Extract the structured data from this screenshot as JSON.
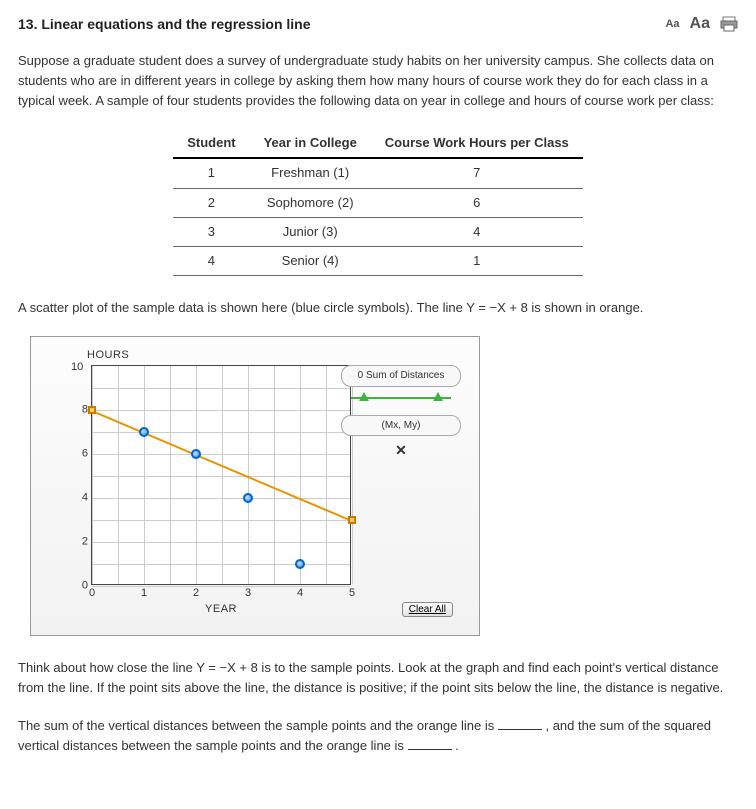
{
  "header": {
    "title": "13. Linear equations and the regression line",
    "font_small": "Aa",
    "font_large": "Aa"
  },
  "intro": "Suppose a graduate student does a survey of undergraduate study habits on her university campus. She collects data on students who are in different years in college by asking them how many hours of course work they do for each class in a typical week. A sample of four students provides the following data on year in college and hours of course work per class:",
  "table": {
    "columns": [
      "Student",
      "Year in College",
      "Course Work Hours per Class"
    ],
    "rows": [
      [
        "1",
        "Freshman (1)",
        "7"
      ],
      [
        "2",
        "Sophomore (2)",
        "6"
      ],
      [
        "3",
        "Junior (3)",
        "4"
      ],
      [
        "4",
        "Senior (4)",
        "1"
      ]
    ]
  },
  "scatter_intro": "A scatter plot of the sample data is shown here (blue circle symbols). The line Y = −X + 8 is shown in orange.",
  "chart": {
    "y_title": "HOURS",
    "x_title": "YEAR",
    "x_ticks": [
      0,
      1,
      2,
      3,
      4,
      5
    ],
    "y_ticks": [
      0,
      2,
      4,
      6,
      8,
      10
    ],
    "y_max_label": "10",
    "xlim": [
      0,
      5
    ],
    "ylim": [
      0,
      10
    ],
    "points": [
      {
        "x": 1,
        "y": 7
      },
      {
        "x": 2,
        "y": 6
      },
      {
        "x": 3,
        "y": 4
      },
      {
        "x": 4,
        "y": 1
      }
    ],
    "point_color": "#4a90d9",
    "line": {
      "x1": 0,
      "y1": 8,
      "x2": 5,
      "y2": 3,
      "color": "#e69500"
    },
    "legend": {
      "sum_label": "0 Sum of Distances",
      "mean_label": "(Mx, My)",
      "mean_symbol": "✕"
    },
    "clear_btn": "Clear All",
    "grid_color": "#cccccc",
    "background_color": "#fefefe"
  },
  "think_para": "Think about how close the line Y = −X + 8 is to the sample points. Look at the graph and find each point's vertical distance from the line. If the point sits above the line, the distance is positive; if the point sits below the line, the distance is negative.",
  "fill_para": {
    "part1": "The sum of the vertical distances between the sample points and the orange line is ",
    "part2": " , and the sum of the squared vertical distances between the sample points and the orange line is ",
    "part3": " ."
  }
}
